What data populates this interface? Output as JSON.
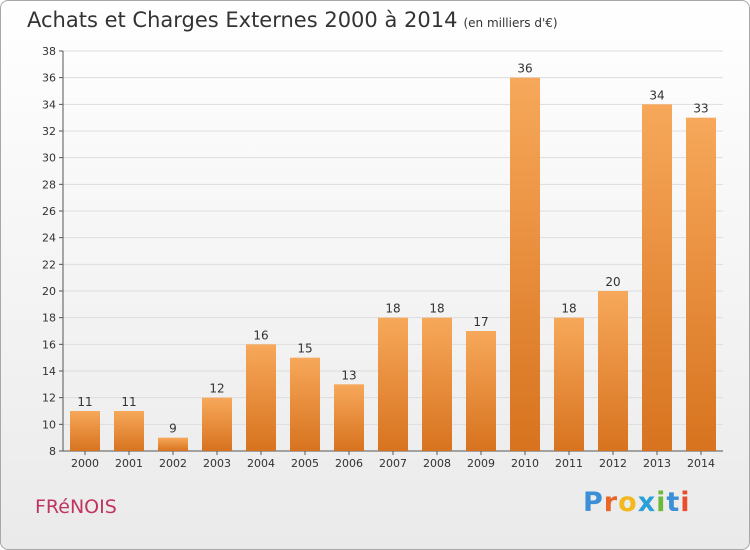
{
  "title": "Achats et Charges Externes 2000 à 2014",
  "title_unit": "(en milliers d'€)",
  "commune": "FRéNOIS",
  "logo": {
    "letters": [
      "P",
      "r",
      "o",
      "x",
      "i",
      "t",
      "i"
    ],
    "colors": [
      "#3a8fd6",
      "#e8662a",
      "#f2b81d",
      "#2a9fd8",
      "#6cb93c",
      "#3a8fd6",
      "#e84e2b"
    ]
  },
  "chart_data": {
    "type": "bar",
    "title": "Achats et Charges Externes 2000 à 2014",
    "subtitle": "(en milliers d'€)",
    "categories": [
      "2000",
      "2001",
      "2002",
      "2003",
      "2004",
      "2005",
      "2006",
      "2007",
      "2008",
      "2009",
      "2010",
      "2011",
      "2012",
      "2013",
      "2014"
    ],
    "values": [
      11,
      11,
      9,
      12,
      16,
      15,
      13,
      18,
      18,
      17,
      36,
      18,
      20,
      34,
      33
    ],
    "ylim": [
      8,
      38
    ],
    "yticks": [
      8,
      10,
      12,
      14,
      16,
      18,
      20,
      22,
      24,
      26,
      28,
      30,
      32,
      34,
      36,
      38
    ],
    "grid": true,
    "bar_color_top": "#f7a85a",
    "bar_color_bottom": "#d7731f"
  }
}
